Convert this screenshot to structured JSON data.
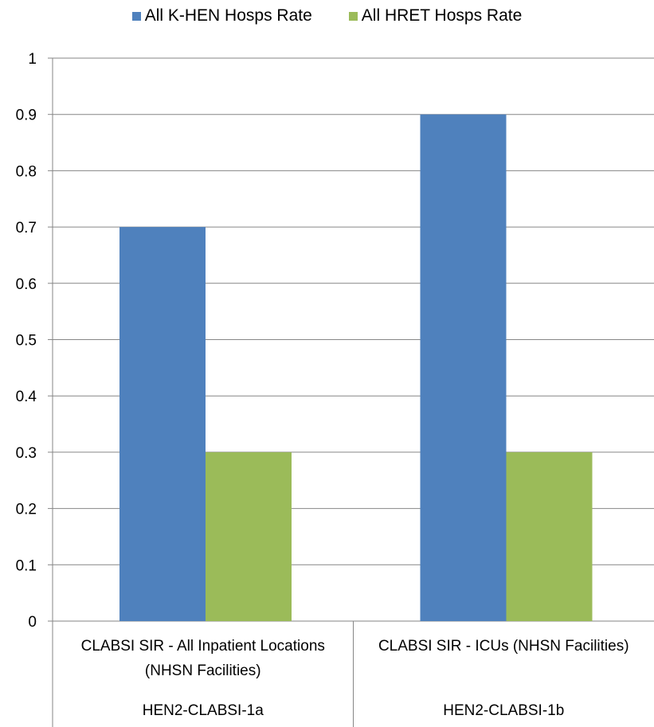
{
  "chart_data": {
    "type": "bar",
    "groups": [
      {
        "category_lines": [
          "CLABSI SIR - All Inpatient Locations",
          "(NHSN Facilities)"
        ],
        "code": "HEN2-CLABSI-1a"
      },
      {
        "category_lines": [
          "CLABSI SIR - ICUs (NHSN Facilities)"
        ],
        "code": "HEN2-CLABSI-1b"
      }
    ],
    "series": [
      {
        "name": "All K-HEN Hosps Rate",
        "color": "#4F81BD",
        "values": [
          0.7,
          0.9
        ]
      },
      {
        "name": "All HRET Hosps Rate",
        "color": "#9BBB59",
        "values": [
          0.3,
          0.3
        ]
      }
    ],
    "ylim": [
      0,
      1
    ],
    "yticks": [
      "0",
      "0.1",
      "0.2",
      "0.3",
      "0.4",
      "0.5",
      "0.6",
      "0.7",
      "0.8",
      "0.9",
      "1"
    ],
    "grid": true,
    "legend_position": "top"
  }
}
